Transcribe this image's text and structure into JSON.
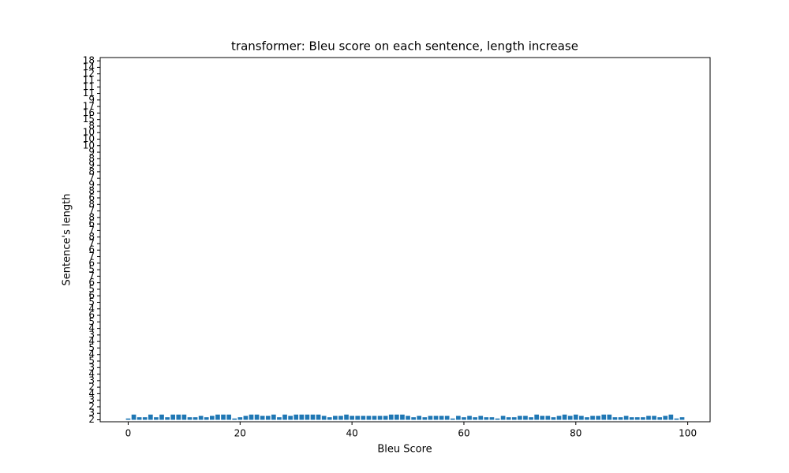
{
  "chart_data": {
    "type": "bar",
    "title": "transformer: Bleu score on each sentence, length increase",
    "xlabel": "Bleu Score",
    "ylabel": "Sentence's length",
    "color": "#1f77b4",
    "x": [
      0,
      1,
      2,
      3,
      4,
      5,
      6,
      7,
      8,
      9,
      10,
      11,
      12,
      13,
      14,
      15,
      16,
      17,
      18,
      19,
      20,
      21,
      22,
      23,
      24,
      25,
      26,
      27,
      28,
      29,
      30,
      31,
      32,
      33,
      34,
      35,
      36,
      37,
      38,
      39,
      40,
      41,
      42,
      43,
      44,
      45,
      46,
      47,
      48,
      49,
      50,
      51,
      52,
      53,
      54,
      55,
      56,
      57,
      58,
      59,
      60,
      61,
      62,
      63,
      64,
      65,
      66,
      67,
      68,
      69,
      70,
      71,
      72,
      73,
      74,
      75,
      76,
      77,
      78,
      79,
      80,
      81,
      82,
      83,
      84,
      85,
      86,
      87,
      88,
      89,
      90,
      91,
      92,
      93,
      94,
      95,
      96,
      97,
      98,
      99
    ],
    "values": [
      0.2,
      0.8,
      0.4,
      0.4,
      0.8,
      0.4,
      0.8,
      0.4,
      0.8,
      0.8,
      0.8,
      0.4,
      0.4,
      0.6,
      0.4,
      0.6,
      0.8,
      0.8,
      0.8,
      0.2,
      0.4,
      0.6,
      0.8,
      0.8,
      0.6,
      0.6,
      0.8,
      0.4,
      0.8,
      0.6,
      0.8,
      0.8,
      0.8,
      0.8,
      0.8,
      0.6,
      0.4,
      0.6,
      0.6,
      0.8,
      0.6,
      0.6,
      0.6,
      0.6,
      0.6,
      0.6,
      0.6,
      0.8,
      0.8,
      0.8,
      0.6,
      0.4,
      0.6,
      0.4,
      0.6,
      0.6,
      0.6,
      0.6,
      0.2,
      0.6,
      0.4,
      0.6,
      0.4,
      0.6,
      0.4,
      0.4,
      0.2,
      0.6,
      0.4,
      0.4,
      0.6,
      0.6,
      0.4,
      0.8,
      0.6,
      0.6,
      0.4,
      0.6,
      0.8,
      0.6,
      0.8,
      0.6,
      0.4,
      0.6,
      0.6,
      0.8,
      0.8,
      0.4,
      0.4,
      0.6,
      0.4,
      0.4,
      0.4,
      0.6,
      0.6,
      0.4,
      0.6,
      0.8,
      0.2,
      0.4
    ],
    "xlim": [
      -5,
      104
    ],
    "xticks": [
      0,
      20,
      40,
      60,
      80,
      100
    ],
    "ylim": [
      -0.3,
      55.5
    ],
    "yticks": [
      {
        "value": 0,
        "label": "2"
      },
      {
        "value": 1,
        "label": "3"
      },
      {
        "value": 2,
        "label": "2"
      },
      {
        "value": 3,
        "label": "3"
      },
      {
        "value": 4,
        "label": "4"
      },
      {
        "value": 5,
        "label": "2"
      },
      {
        "value": 6,
        "label": "3"
      },
      {
        "value": 7,
        "label": "4"
      },
      {
        "value": 8,
        "label": "3"
      },
      {
        "value": 9,
        "label": "5"
      },
      {
        "value": 10,
        "label": "4"
      },
      {
        "value": 11,
        "label": "5"
      },
      {
        "value": 12,
        "label": "4"
      },
      {
        "value": 13,
        "label": "3"
      },
      {
        "value": 14,
        "label": "4"
      },
      {
        "value": 15,
        "label": "5"
      },
      {
        "value": 16,
        "label": "6"
      },
      {
        "value": 17,
        "label": "4"
      },
      {
        "value": 18,
        "label": "5"
      },
      {
        "value": 19,
        "label": "6"
      },
      {
        "value": 20,
        "label": "5"
      },
      {
        "value": 21,
        "label": "6"
      },
      {
        "value": 22,
        "label": "7"
      },
      {
        "value": 23,
        "label": "5"
      },
      {
        "value": 24,
        "label": "6"
      },
      {
        "value": 25,
        "label": "7"
      },
      {
        "value": 26,
        "label": "6"
      },
      {
        "value": 27,
        "label": "7"
      },
      {
        "value": 28,
        "label": "8"
      },
      {
        "value": 29,
        "label": "7"
      },
      {
        "value": 30,
        "label": "6"
      },
      {
        "value": 31,
        "label": "8"
      },
      {
        "value": 32,
        "label": "7"
      },
      {
        "value": 33,
        "label": "8"
      },
      {
        "value": 34,
        "label": "6"
      },
      {
        "value": 35,
        "label": "8"
      },
      {
        "value": 36,
        "label": "9"
      },
      {
        "value": 37,
        "label": "7"
      },
      {
        "value": 38,
        "label": "8"
      },
      {
        "value": 39,
        "label": "9"
      },
      {
        "value": 40,
        "label": "8"
      },
      {
        "value": 41,
        "label": "9"
      },
      {
        "value": 42,
        "label": "10"
      },
      {
        "value": 43,
        "label": "10"
      },
      {
        "value": 44,
        "label": "10"
      },
      {
        "value": 45,
        "label": "8"
      },
      {
        "value": 46,
        "label": "15"
      },
      {
        "value": 47,
        "label": "16"
      },
      {
        "value": 48,
        "label": "17"
      },
      {
        "value": 49,
        "label": "9"
      },
      {
        "value": 50,
        "label": "11"
      },
      {
        "value": 51,
        "label": "11"
      },
      {
        "value": 52,
        "label": "11"
      },
      {
        "value": 53,
        "label": "12"
      },
      {
        "value": 54,
        "label": "14"
      },
      {
        "value": 55,
        "label": "18"
      }
    ]
  }
}
